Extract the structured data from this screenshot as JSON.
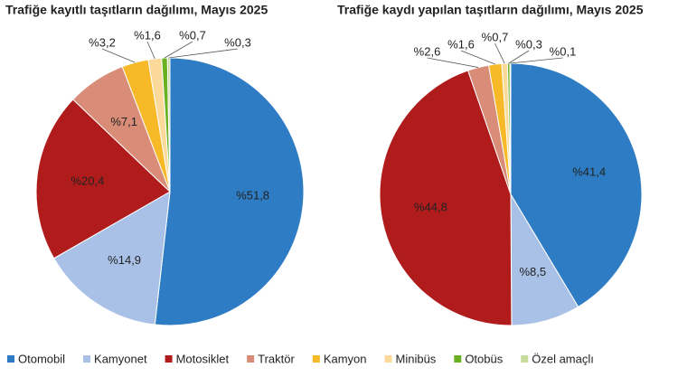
{
  "chart_data": [
    {
      "type": "pie",
      "title": "Trafiğe kayıtlı taşıtların dağılımı, Mayıs 2025",
      "values": [
        51.8,
        14.9,
        20.4,
        7.1,
        3.2,
        1.6,
        0.7,
        0.3
      ],
      "value_labels": [
        "%51,8",
        "%14,9",
        "%20,4",
        "%7,1",
        "%3,2",
        "%1,6",
        "%0,7",
        "%0,3"
      ]
    },
    {
      "type": "pie",
      "title": "Trafiğe kaydı yapılan taşıtların dağılımı, Mayıs 2025",
      "values": [
        41.4,
        8.5,
        44.8,
        2.6,
        1.6,
        0.7,
        0.3,
        0.1
      ],
      "value_labels": [
        "%41,4",
        "%8,5",
        "%44,8",
        "%2,6",
        "%1,6",
        "%0,7",
        "%0,3",
        "%0,1"
      ]
    }
  ],
  "legend": {
    "labels": [
      "Otomobil",
      "Kamyonet",
      "Motosiklet",
      "Traktör",
      "Kamyon",
      "Minibüs",
      "Otobüs",
      "Özel amaçlı"
    ],
    "colors": [
      "#2e7dc4",
      "#a9c1e6",
      "#b01c1c",
      "#d98c78",
      "#f7b928",
      "#fbd99a",
      "#6ab023",
      "#c8dc9c"
    ]
  }
}
